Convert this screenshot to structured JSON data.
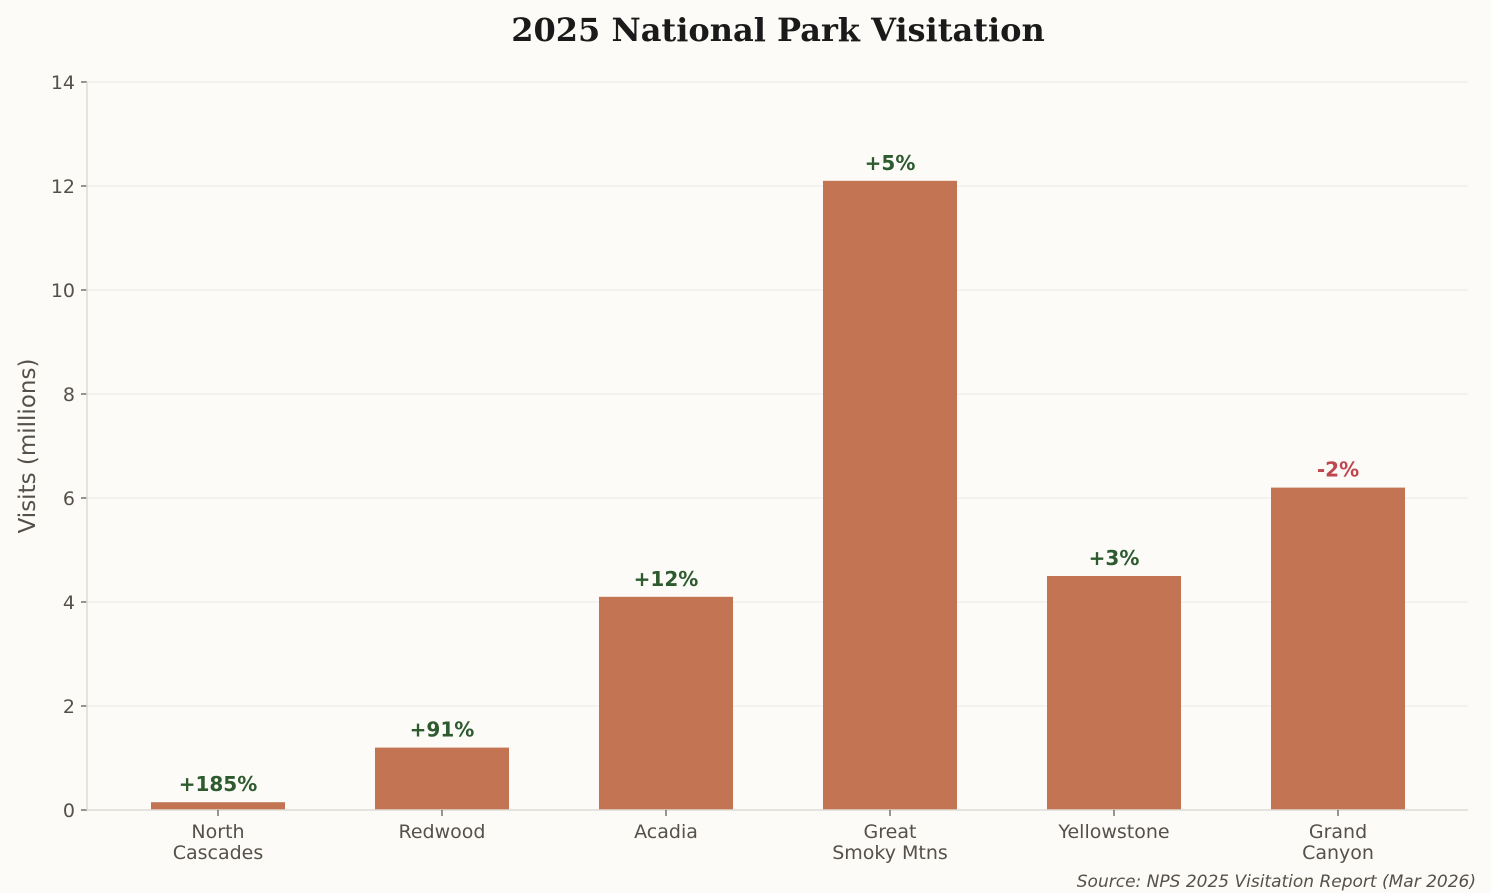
{
  "chart_data": {
    "type": "bar",
    "title": "2025 National Park Visitation",
    "xlabel": "",
    "ylabel": "Visits (millions)",
    "ylim": [
      0,
      14
    ],
    "yticks": [
      0,
      2,
      4,
      6,
      8,
      10,
      12,
      14
    ],
    "grid": "horizontal",
    "categories": [
      [
        "North",
        "Cascades"
      ],
      [
        "Redwood"
      ],
      [
        "Acadia"
      ],
      [
        "Great",
        "Smoky Mtns"
      ],
      [
        "Yellowstone"
      ],
      [
        "Grand",
        "Canyon"
      ]
    ],
    "values": [
      0.15,
      1.2,
      4.1,
      12.1,
      4.5,
      6.2
    ],
    "data_labels": [
      "+185%",
      "+91%",
      "+12%",
      "+5%",
      "+3%",
      "-2%"
    ],
    "colors": {
      "bar": "#c27453",
      "positive": "#2d5a2e",
      "negative": "#c0474f",
      "grid": "#efede8",
      "axis": "#dedad3"
    },
    "source": "Source: NPS 2025 Visitation Report (Mar 2026)"
  }
}
